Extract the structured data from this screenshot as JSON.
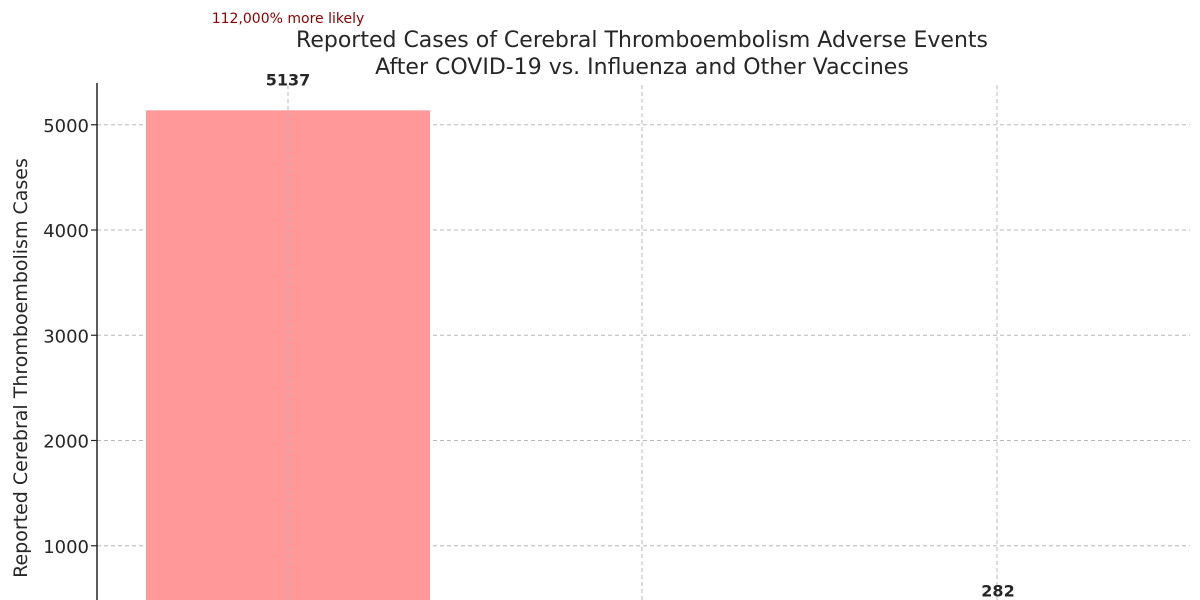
{
  "chart_data": {
    "type": "bar",
    "title_lines": [
      "Reported Cases of Cerebral Thromboembolism Adverse Events",
      "After COVID-19 vs. Influenza and Other Vaccines"
    ],
    "annotation": "112,000% more likely",
    "xlabel": "",
    "ylabel": "Reported Cerebral Thromboembolism Cases",
    "categories": [
      "",
      ""
    ],
    "values": [
      5137,
      282
    ],
    "value_labels": [
      "5137",
      "282"
    ],
    "yticks": [
      1000,
      2000,
      3000,
      4000,
      5000
    ],
    "ytick_labels": [
      "1000",
      "2000",
      "3000",
      "4000",
      "5000"
    ],
    "ylim": [
      0,
      5400
    ],
    "grid": true,
    "colors": {
      "bars": [
        "#ff9999",
        "#66b3ff"
      ],
      "annotation": "#8b0000",
      "text": "#262626",
      "grid": "#b8b8b8"
    }
  }
}
